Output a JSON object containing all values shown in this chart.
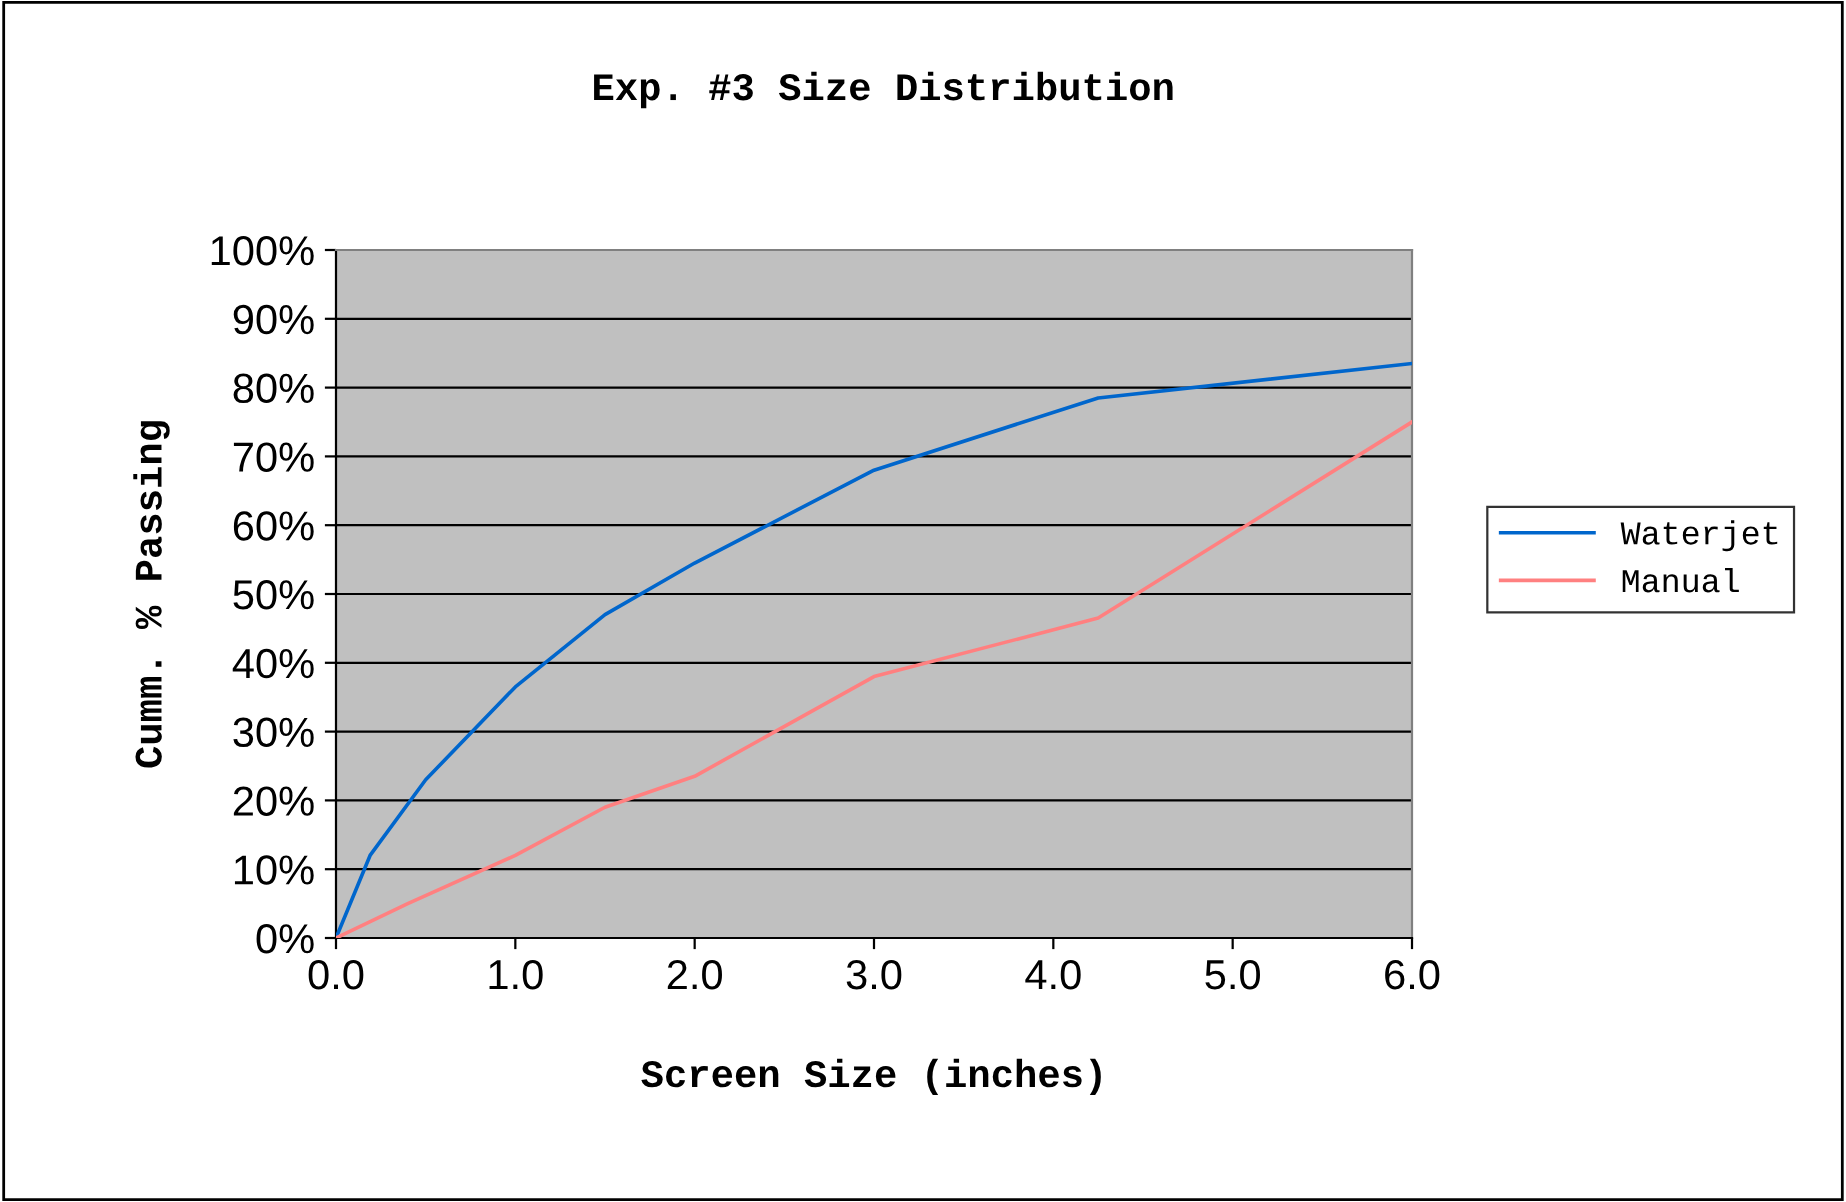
{
  "chart_data": {
    "type": "line",
    "title": "Exp. #3 Size Distribution",
    "xlabel": "Screen Size (inches)",
    "ylabel": "Cumm. % Passing",
    "series": [
      {
        "name": "Waterjet",
        "color": "#0066cc",
        "x": [
          0,
          0.19,
          0.5,
          1.0,
          1.5,
          2.0,
          3.0,
          4.25,
          6.0
        ],
        "values": [
          0,
          12,
          23,
          36.5,
          47,
          54.5,
          68,
          78.5,
          83.5
        ]
      },
      {
        "name": "Manual",
        "color": "#ff8080",
        "x": [
          0,
          0.4,
          1.0,
          1.5,
          2.0,
          3.0,
          4.25,
          6.0
        ],
        "values": [
          0,
          5,
          12,
          19,
          23.5,
          38,
          46.5,
          75
        ]
      }
    ],
    "xlim": [
      0,
      6
    ],
    "ylim": [
      0,
      100
    ],
    "xticks": [
      {
        "value": 0,
        "label": "0.0"
      },
      {
        "value": 1,
        "label": "1.0"
      },
      {
        "value": 2,
        "label": "2.0"
      },
      {
        "value": 3,
        "label": "3.0"
      },
      {
        "value": 4,
        "label": "4.0"
      },
      {
        "value": 5,
        "label": "5.0"
      },
      {
        "value": 6,
        "label": "6.0"
      }
    ],
    "yticks": [
      {
        "value": 0,
        "label": "0%"
      },
      {
        "value": 10,
        "label": "10%"
      },
      {
        "value": 20,
        "label": "20%"
      },
      {
        "value": 30,
        "label": "30%"
      },
      {
        "value": 40,
        "label": "40%"
      },
      {
        "value": 50,
        "label": "50%"
      },
      {
        "value": 60,
        "label": "60%"
      },
      {
        "value": 70,
        "label": "70%"
      },
      {
        "value": 80,
        "label": "80%"
      },
      {
        "value": 90,
        "label": "90%"
      },
      {
        "value": 100,
        "label": "100%"
      }
    ],
    "grid": "y",
    "legend": "right",
    "marker": "none",
    "line_style": "solid"
  }
}
